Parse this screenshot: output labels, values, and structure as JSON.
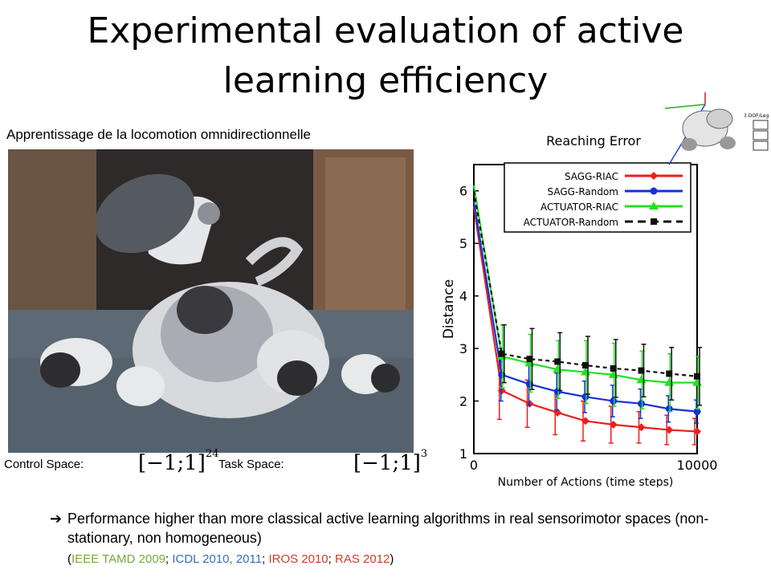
{
  "slide": {
    "title": "Experimental evaluation of active learning efficiency",
    "subtitle": "Apprentissage de la locomotion omnidirectionnelle",
    "control_space_label": "Control Space:",
    "task_space_label": "Task Space:",
    "control_space_expr": "[−1;1]",
    "control_space_exp": "24",
    "task_space_expr": "[−1;1]",
    "task_space_exp": "3",
    "bullet_text": "Performance higher than more classical active learning algorithms in real sensorimotor spaces (non-stationary, non homogeneous)",
    "refs": {
      "open": "(",
      "r1": "IEEE TAMD 2009",
      "sep1": "; ",
      "r2": "ICDL 2010, 2011",
      "sep2": "; ",
      "r3": "IROS 2010",
      "sep3": "; ",
      "r4": "RAS 2012",
      "close": ")"
    },
    "mini_robot_label": "3 DOF/Leg"
  },
  "chart_data": {
    "type": "line",
    "title": "Reaching Error",
    "xlabel": "Number of Actions (time steps)",
    "ylabel": "Distance",
    "xlim": [
      0,
      10000
    ],
    "ylim": [
      1,
      6.5
    ],
    "x_tick_labels": [
      "0",
      "10000"
    ],
    "y_ticks": [
      1,
      2,
      3,
      4,
      5,
      6
    ],
    "x": [
      0,
      1250,
      2500,
      3750,
      5000,
      6250,
      7500,
      8750,
      10000
    ],
    "series": [
      {
        "name": "SAGG-RIAC",
        "color": "#e8201c",
        "marker": "diamond",
        "dashed": false,
        "values": [
          5.7,
          2.2,
          1.95,
          1.78,
          1.62,
          1.55,
          1.5,
          1.45,
          1.42
        ],
        "err": [
          0.2,
          0.55,
          0.45,
          0.42,
          0.38,
          0.35,
          0.3,
          0.28,
          0.25
        ]
      },
      {
        "name": "SAGG-Random",
        "color": "#1530d8",
        "marker": "circle",
        "dashed": false,
        "values": [
          5.8,
          2.5,
          2.32,
          2.18,
          2.08,
          2.0,
          1.95,
          1.85,
          1.8
        ],
        "err": [
          0.2,
          0.5,
          0.4,
          0.35,
          0.3,
          0.3,
          0.28,
          0.25,
          0.22
        ]
      },
      {
        "name": "ACTUATOR-RIAC",
        "color": "#22e022",
        "marker": "triangle",
        "dashed": false,
        "values": [
          6.1,
          2.85,
          2.72,
          2.6,
          2.55,
          2.5,
          2.4,
          2.35,
          2.35
        ],
        "err": [
          0.2,
          0.6,
          0.55,
          0.55,
          0.6,
          0.6,
          0.55,
          0.55,
          0.5
        ]
      },
      {
        "name": "ACTUATOR-Random",
        "color": "#111111",
        "marker": "square",
        "dashed": true,
        "values": [
          6.0,
          2.9,
          2.8,
          2.75,
          2.68,
          2.62,
          2.58,
          2.52,
          2.47
        ],
        "err": [
          0.2,
          0.55,
          0.58,
          0.55,
          0.55,
          0.55,
          0.5,
          0.5,
          0.55
        ]
      }
    ],
    "legend_position": "top-right",
    "grid": false
  }
}
